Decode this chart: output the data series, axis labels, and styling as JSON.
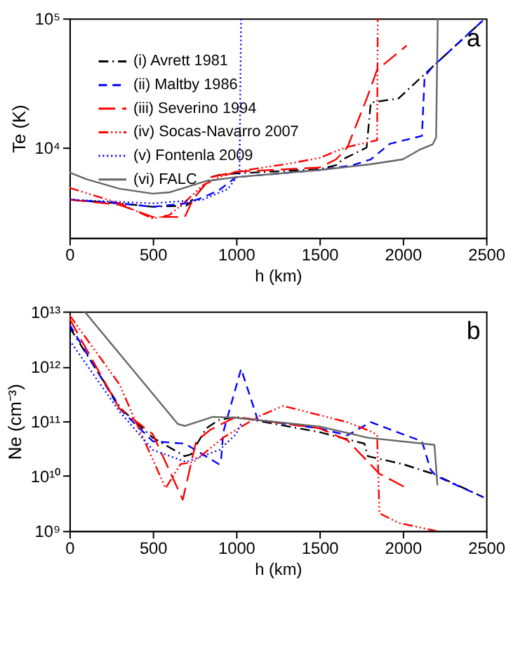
{
  "chart_data": [
    {
      "type": "line",
      "xlabel": "h (km)",
      "ylabel": "Te (K)",
      "log": "y",
      "xlim": [
        0,
        2500
      ],
      "xticks": [
        0,
        500,
        1000,
        1500,
        2000,
        2500
      ],
      "ylim": [
        2000,
        100000
      ],
      "yticks": [
        {
          "value": 10000,
          "label": "10⁴"
        },
        {
          "value": 100000,
          "label": "10⁵"
        }
      ],
      "grid": false,
      "legend": "top left",
      "annotations": [
        "a"
      ],
      "series": [
        {
          "name": "(i) Avrett 1981",
          "color": "#000000",
          "line_style": "dashdot",
          "x": [
            0,
            300,
            500,
            700,
            720,
            850,
            900,
            1000,
            1500,
            1600,
            1640,
            1783,
            1808,
            1975,
            2177,
            2485
          ],
          "values": [
            3950,
            3700,
            3480,
            3550,
            3700,
            5900,
            6150,
            6300,
            6800,
            7300,
            8100,
            10000,
            22300,
            24000,
            42000,
            97500
          ]
        },
        {
          "name": "(ii) Maltby 1986",
          "color": "#0000ff",
          "line_style": "dashed",
          "x": [
            0,
            300,
            500,
            700,
            800,
            900,
            1000,
            1500,
            1700,
            1808,
            1923,
            2115,
            2131,
            2177,
            2485
          ],
          "values": [
            3950,
            3700,
            3480,
            3700,
            4100,
            4700,
            5900,
            6700,
            7300,
            8100,
            10700,
            12300,
            35500,
            42000,
            97500
          ]
        },
        {
          "name": "(iii) Severino 1994",
          "color": "#ff0000",
          "line_style": "longdash",
          "x": [
            0,
            300,
            500,
            692,
            740,
            850,
            1000,
            1500,
            1600,
            1667,
            1783,
            1846,
            2023
          ],
          "values": [
            3950,
            3600,
            2900,
            2900,
            3950,
            5900,
            6500,
            7000,
            8100,
            10000,
            23800,
            40000,
            61500
          ]
        },
        {
          "name": "(iv) Socas-Navarro 2007",
          "color": "#ff0000",
          "line_style": "dashdotdotdot",
          "x": [
            0,
            300,
            500,
            600,
            700,
            800,
            900,
            1000,
            1300,
            1500,
            1654,
            1846,
            1850
          ],
          "values": [
            4880,
            3700,
            2820,
            3000,
            3860,
            5100,
            5900,
            6500,
            7450,
            8300,
            10000,
            11400,
            100000
          ]
        },
        {
          "name": "(v) Fontenla 2009",
          "color": "#0000ff",
          "line_style": "dotted",
          "x": [
            0,
            500,
            800,
            950,
            1020,
            1030
          ],
          "values": [
            3950,
            3700,
            3950,
            4770,
            6300,
            100000
          ]
        },
        {
          "name": "(vi) FALC",
          "color": "#666666",
          "line_style": "solid",
          "x": [
            0,
            100,
            300,
            500,
            600,
            820,
            1000,
            1500,
            1800,
            2000,
            2100,
            2180,
            2200,
            2210
          ],
          "values": [
            6420,
            5700,
            4800,
            4400,
            4500,
            5500,
            5900,
            6700,
            7400,
            8100,
            9600,
            10600,
            12000,
            100000
          ]
        }
      ]
    },
    {
      "type": "line",
      "xlabel": "h (km)",
      "ylabel": "Ne (cm⁻³)",
      "log": "y",
      "xlim": [
        0,
        2500
      ],
      "xticks": [
        0,
        500,
        1000,
        1500,
        2000,
        2500
      ],
      "ylim": [
        1000000000.0,
        10000000000000.0
      ],
      "yticks": [
        {
          "value": 1000000000.0,
          "label": "10⁹"
        },
        {
          "value": 10000000000.0,
          "label": "10¹⁰"
        },
        {
          "value": 100000000000.0,
          "label": "10¹¹"
        },
        {
          "value": 1000000000000.0,
          "label": "10¹²"
        },
        {
          "value": 10000000000000.0,
          "label": "10¹³"
        }
      ],
      "grid": false,
      "legend": false,
      "annotations": [
        "b"
      ],
      "series": [
        {
          "color": "#000000",
          "line_style": "dashdot",
          "x": [
            0,
            308,
            500,
            692,
            730,
            820,
            897,
            1000,
            1500,
            1770,
            1790,
            2000,
            2180,
            2485
          ],
          "values": [
            5200000000000.0,
            170000000000.0,
            50000000000.0,
            23000000000.0,
            25000000000.0,
            74000000000.0,
            105000000000.0,
            120000000000.0,
            63000000000.0,
            39000000000.0,
            23000000000.0,
            16500000000.0,
            11000000000.0,
            4100000000.0
          ]
        },
        {
          "color": "#0000ff",
          "line_style": "dashed",
          "x": [
            0,
            300,
            500,
            692,
            897,
            910,
            923,
            1030,
            1130,
            1500,
            1667,
            1808,
            2000,
            2115,
            2167,
            2200,
            2485
          ],
          "values": [
            5800000000000.0,
            170000000000.0,
            43000000000.0,
            39000000000.0,
            16500000000.0,
            20000000000.0,
            63000000000.0,
            900000000000.0,
            105000000000.0,
            74000000000.0,
            55000000000.0,
            96000000000.0,
            58000000000.0,
            43000000000.0,
            13000000000.0,
            10000000000.0,
            4100000000.0
          ]
        },
        {
          "color": "#ff0000",
          "line_style": "longdash",
          "x": [
            0,
            300,
            500,
            680,
            760,
            846,
            1000,
            1500,
            1667,
            1860,
            2025
          ],
          "values": [
            7400000000000.0,
            170000000000.0,
            58000000000.0,
            3700000000.0,
            43000000000.0,
            70000000000.0,
            120000000000.0,
            74000000000.0,
            45000000000.0,
            11000000000.0,
            6000000000.0
          ]
        },
        {
          "color": "#ff0000",
          "line_style": "dashdotdotdot",
          "x": [
            0,
            300,
            385,
            577,
            667,
            744,
            923,
            1130,
            1282,
            1667,
            1820,
            1846,
            1860,
            1975,
            2200
          ],
          "values": [
            8600000000000.0,
            470000000000.0,
            120000000000.0,
            6000000000.0,
            16500000000.0,
            18000000000.0,
            50000000000.0,
            120000000000.0,
            190000000000.0,
            96000000000.0,
            63000000000.0,
            55000000000.0,
            2100000000.0,
            1400000000.0,
            1000000000.0
          ]
        },
        {
          "color": "#0000ff",
          "line_style": "dotted",
          "x": [
            0,
            300,
            500,
            700,
            900,
            1000,
            1030
          ],
          "values": [
            3000000000000.0,
            150000000000.0,
            30000000000.0,
            18000000000.0,
            30000000000.0,
            58000000000.0,
            90000000000.0
          ]
        },
        {
          "color": "#666666",
          "line_style": "solid",
          "x": [
            90,
            650,
            692,
            860,
            1000,
            1500,
            1790,
            2190,
            2208
          ],
          "values": [
            10000000000000.0,
            89000000000.0,
            82000000000.0,
            120000000000.0,
            115000000000.0,
            80000000000.0,
            50000000000.0,
            37000000000.0,
            6800000000.0
          ]
        }
      ]
    }
  ]
}
